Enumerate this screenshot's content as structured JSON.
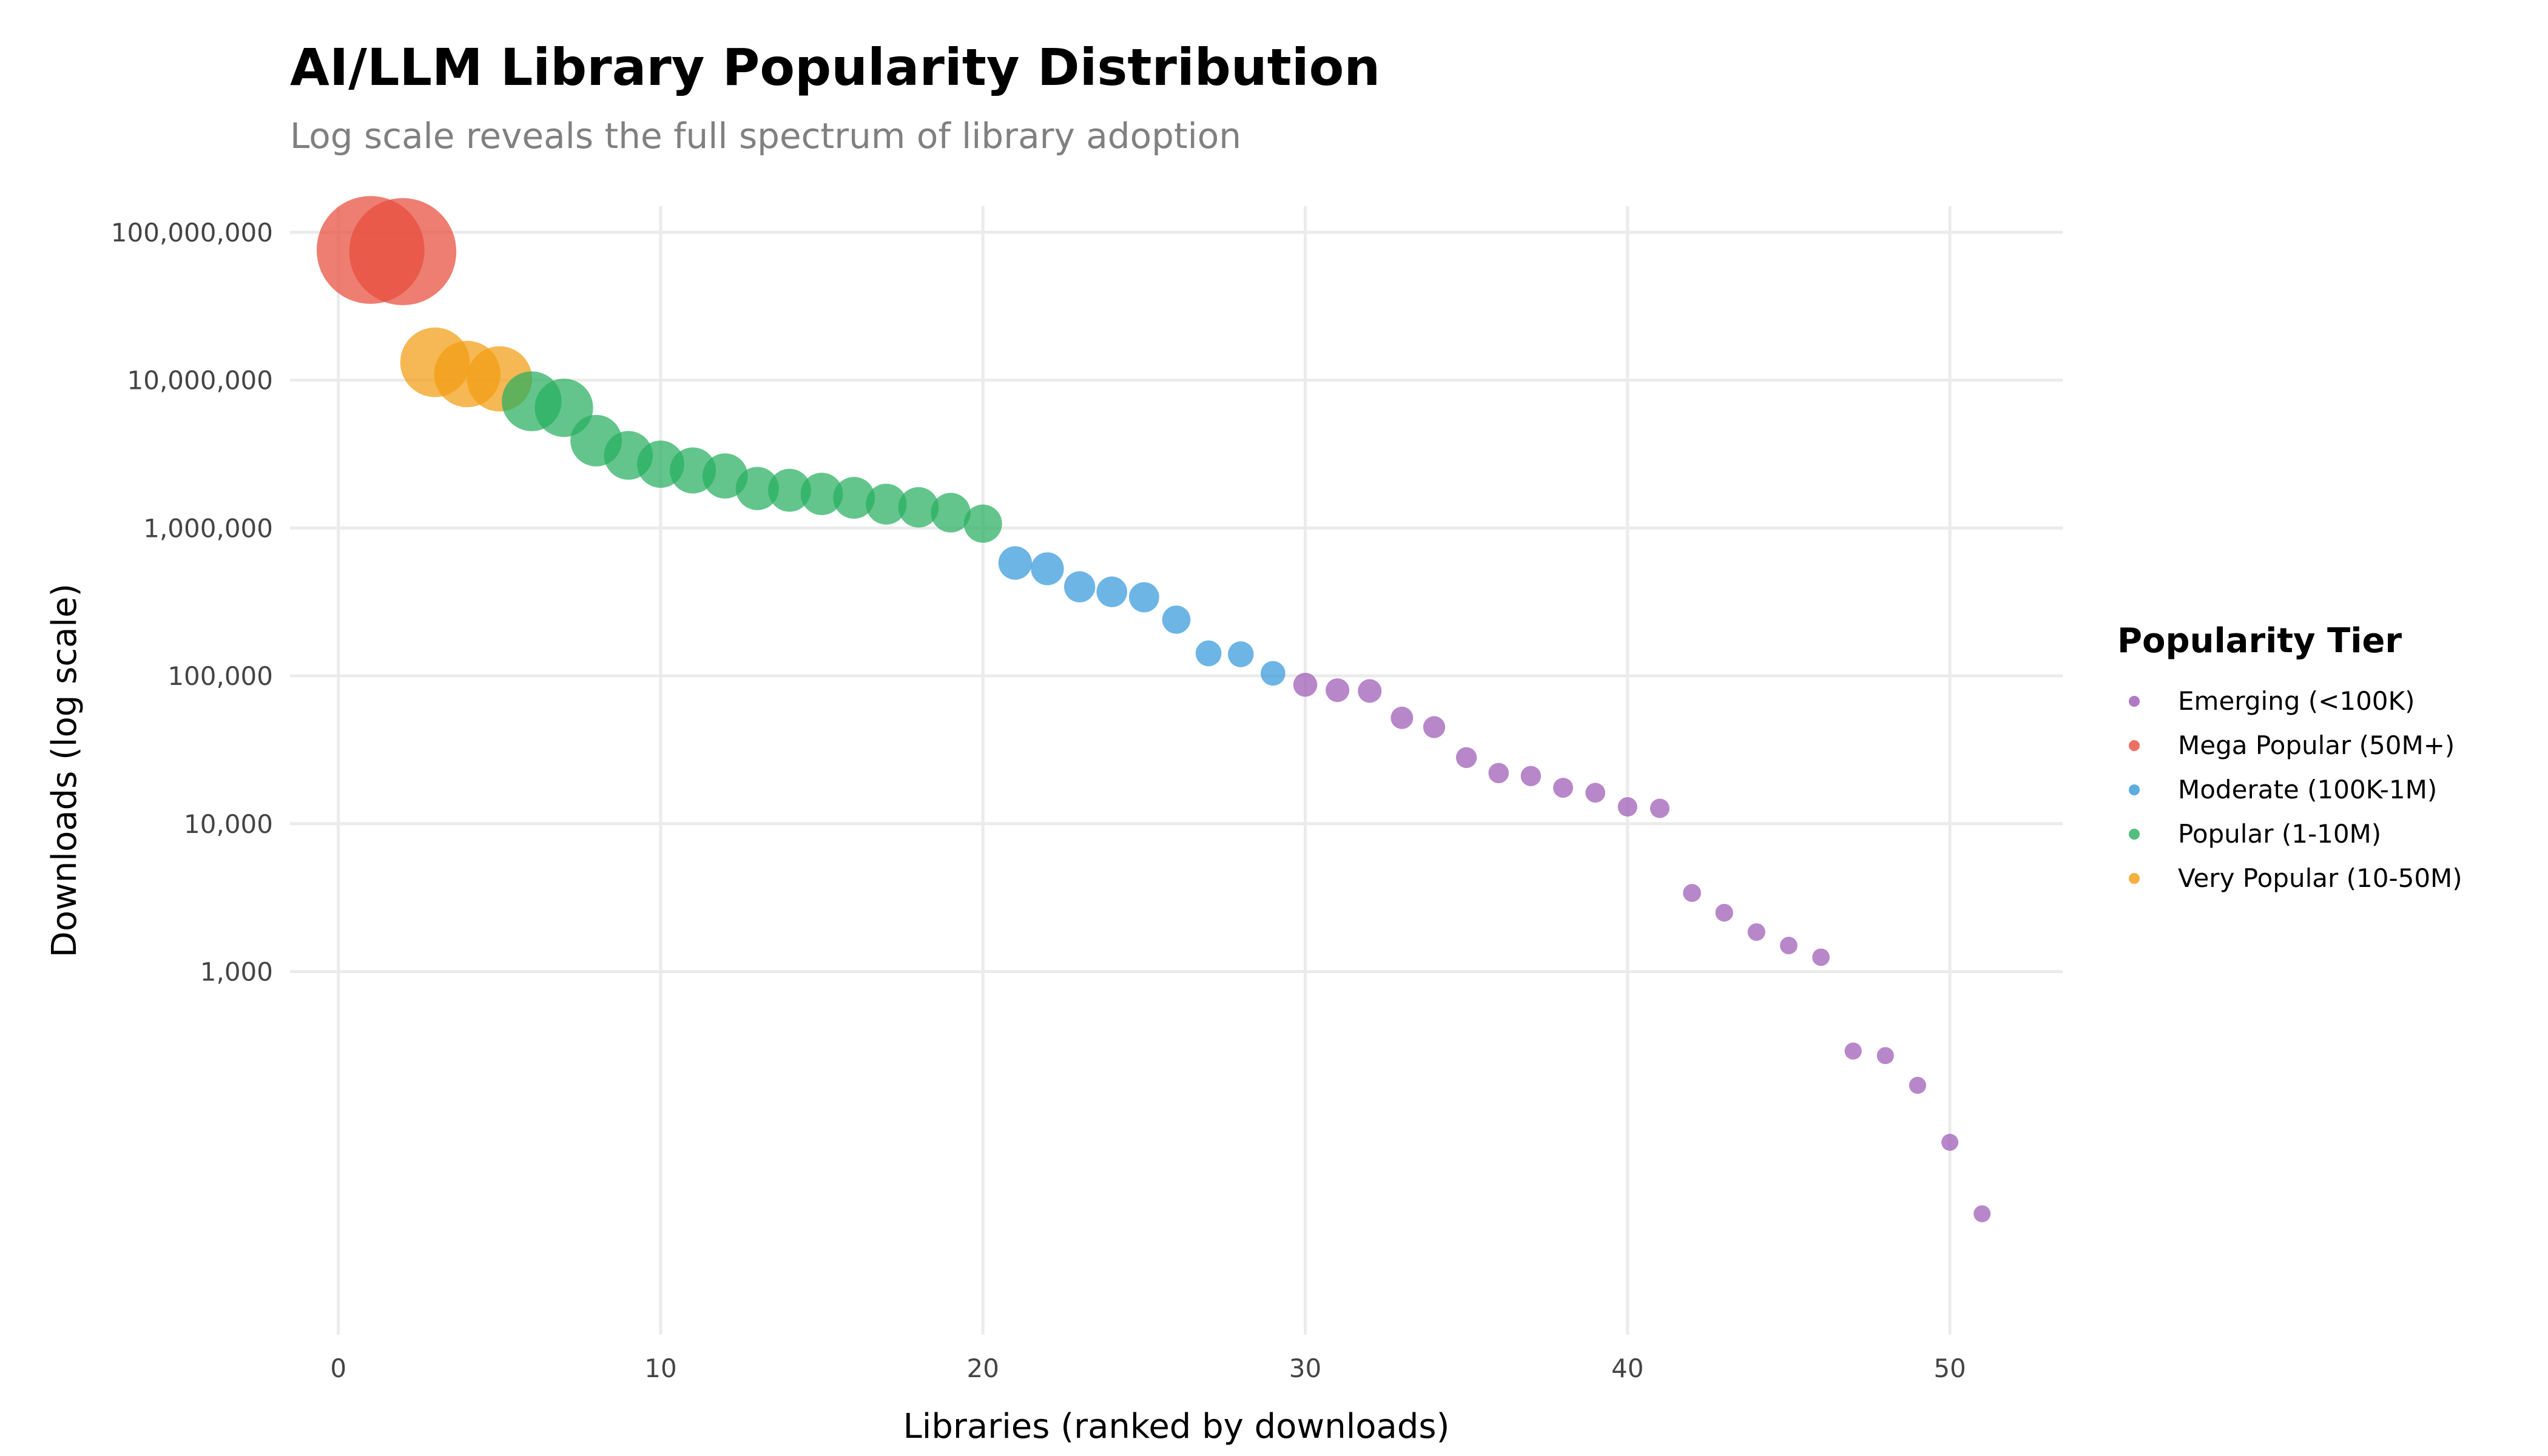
{
  "chart_data": {
    "type": "scatter",
    "title": "AI/LLM Library Popularity Distribution",
    "subtitle": "Log scale reveals the full spectrum of library adoption",
    "xlabel": "Libraries (ranked by downloads)",
    "ylabel": "Downloads (log scale)",
    "x_scale": "linear",
    "y_scale": "log",
    "xlim": [
      -1.5,
      53.5
    ],
    "ylim": [
      3.5,
      150000000
    ],
    "x_ticks": [
      0,
      10,
      20,
      30,
      40,
      50
    ],
    "x_tick_labels": [
      "0",
      "10",
      "20",
      "30",
      "40",
      "50"
    ],
    "y_ticks": [
      1000,
      10000,
      100000,
      1000000,
      10000000,
      100000000
    ],
    "y_tick_labels": [
      "1,000",
      "10,000",
      "100,000",
      "1,000,000",
      "10,000,000",
      "100,000,000"
    ],
    "grid": true,
    "legend_position": "right",
    "legend_title": "Popularity Tier",
    "legend": [
      {
        "name": "Emerging (<100K)",
        "color": "#9B59B6"
      },
      {
        "name": "Mega Popular (50M+)",
        "color": "#E74C3C"
      },
      {
        "name": "Moderate (100K-1M)",
        "color": "#3498DB"
      },
      {
        "name": "Popular (1-10M)",
        "color": "#27AE60"
      },
      {
        "name": "Very Popular (10-50M)",
        "color": "#F39C12"
      }
    ],
    "series": [
      {
        "name": "Mega Popular (50M+)",
        "color": "#E74C3C",
        "x": [
          1,
          2
        ],
        "y": [
          76000000,
          74000000
        ]
      },
      {
        "name": "Very Popular (10-50M)",
        "color": "#F39C12",
        "x": [
          3,
          4,
          5
        ],
        "y": [
          13200000,
          11000000,
          10200000
        ]
      },
      {
        "name": "Popular (1-10M)",
        "color": "#27AE60",
        "x": [
          6,
          7,
          8,
          9,
          10,
          11,
          12,
          13,
          14,
          15,
          16,
          17,
          18,
          19,
          20
        ],
        "y": [
          7200000,
          6500000,
          3900000,
          3100000,
          2700000,
          2450000,
          2250000,
          1850000,
          1800000,
          1700000,
          1600000,
          1450000,
          1380000,
          1270000,
          1070000
        ]
      },
      {
        "name": "Moderate (100K-1M)",
        "color": "#3498DB",
        "x": [
          21,
          22,
          23,
          24,
          25,
          26,
          27,
          28,
          29
        ],
        "y": [
          580000,
          530000,
          400000,
          370000,
          340000,
          240000,
          142000,
          140000,
          104000
        ]
      },
      {
        "name": "Emerging (<100K)",
        "color": "#9B59B6",
        "x": [
          30,
          31,
          32,
          33,
          34,
          35,
          36,
          37,
          38,
          39,
          40,
          41,
          42,
          43,
          44,
          45,
          46,
          47,
          48,
          49,
          50,
          51
        ],
        "y": [
          87000,
          80000,
          79000,
          52000,
          45000,
          28000,
          22000,
          21000,
          17500,
          16200,
          13000,
          12700,
          3400,
          2500,
          1850,
          1500,
          1250,
          290,
          270,
          170,
          70,
          23
        ]
      }
    ]
  }
}
